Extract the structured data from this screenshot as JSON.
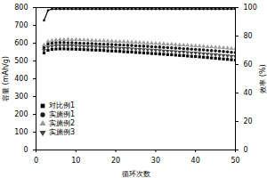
{
  "chart_data": {
    "type": "line",
    "x_label": "循环次数",
    "y_label": "容量 (mAh/g)",
    "y2_label": "效率 (%)",
    "x": [
      2,
      3,
      4,
      5,
      6,
      7,
      8,
      9,
      10,
      11,
      12,
      13,
      14,
      15,
      16,
      17,
      18,
      19,
      20,
      21,
      22,
      23,
      24,
      25,
      26,
      27,
      28,
      29,
      30,
      31,
      32,
      33,
      34,
      35,
      36,
      37,
      38,
      39,
      40,
      41,
      42,
      43,
      44,
      45,
      46,
      47,
      48,
      49,
      50
    ],
    "xlim": [
      0,
      50
    ],
    "xticks": [
      0,
      10,
      20,
      30,
      40,
      50
    ],
    "ylim": [
      0,
      800
    ],
    "yticks": [
      0,
      100,
      200,
      300,
      400,
      500,
      600,
      700,
      800
    ],
    "y2lim": [
      0,
      100
    ],
    "y2ticks": [
      0,
      20,
      40,
      60,
      80,
      100
    ],
    "legend": "lower left",
    "series": [
      {
        "name": "对比例1",
        "type": "scatter",
        "marker": "square",
        "color": "#000000",
        "values": [
          545,
          560,
          565,
          567,
          568,
          568,
          567,
          567,
          566,
          565,
          564,
          563,
          562,
          561,
          560,
          559,
          557,
          556,
          555,
          554,
          552,
          551,
          550,
          548,
          547,
          545,
          544,
          542,
          541,
          539,
          538,
          536,
          535,
          533,
          531,
          530,
          528,
          526,
          525,
          523,
          521,
          519,
          517,
          515,
          513,
          511,
          509,
          507,
          505
        ]
      },
      {
        "name": "实施例1",
        "type": "scatter",
        "marker": "circle",
        "color": "#1a1a1a",
        "values": [
          575,
          595,
          600,
          602,
          603,
          603,
          602,
          602,
          601,
          600,
          599,
          598,
          597,
          596,
          595,
          594,
          593,
          592,
          591,
          590,
          589,
          588,
          587,
          585,
          584,
          583,
          582,
          580,
          579,
          578,
          576,
          575,
          574,
          572,
          571,
          569,
          568,
          566,
          565,
          563,
          562,
          560,
          558,
          557,
          555,
          553,
          551,
          549,
          547
        ]
      },
      {
        "name": "实施例2",
        "type": "scatter",
        "marker": "triangle",
        "color": "#9a9a9a",
        "values": [
          590,
          610,
          615,
          618,
          620,
          620,
          621,
          620,
          620,
          619,
          618,
          617,
          616,
          615,
          614,
          613,
          612,
          611,
          610,
          609,
          608,
          607,
          606,
          605,
          603,
          602,
          601,
          600,
          598,
          597,
          596,
          594,
          593,
          592,
          590,
          589,
          588,
          586,
          585,
          583,
          582,
          580,
          579,
          577,
          576,
          574,
          572,
          570,
          568
        ]
      },
      {
        "name": "实施例3",
        "type": "scatter",
        "marker": "triangle-down",
        "color": "#444444",
        "values": [
          560,
          578,
          583,
          585,
          586,
          586,
          585,
          585,
          584,
          583,
          582,
          581,
          580,
          579,
          578,
          577,
          576,
          575,
          573,
          572,
          571,
          570,
          568,
          567,
          566,
          564,
          563,
          562,
          560,
          559,
          557,
          556,
          554,
          553,
          551,
          550,
          548,
          546,
          545,
          543,
          541,
          539,
          537,
          535,
          533,
          531,
          529,
          527,
          525
        ]
      },
      {
        "type": "line",
        "axis": "y2",
        "marker": "circle",
        "line_style": "solid",
        "color": "#000000",
        "values": [
          91,
          98,
          99,
          99,
          99,
          99,
          99,
          99,
          99,
          99,
          99,
          99,
          99,
          99,
          99,
          99,
          99,
          99,
          99,
          99,
          99,
          99,
          99,
          99,
          99,
          99,
          99,
          99,
          99,
          99,
          99,
          99,
          99,
          99,
          99,
          99,
          99,
          99,
          99,
          99,
          99,
          99,
          99,
          99,
          99,
          99,
          99,
          99,
          99
        ]
      }
    ]
  }
}
